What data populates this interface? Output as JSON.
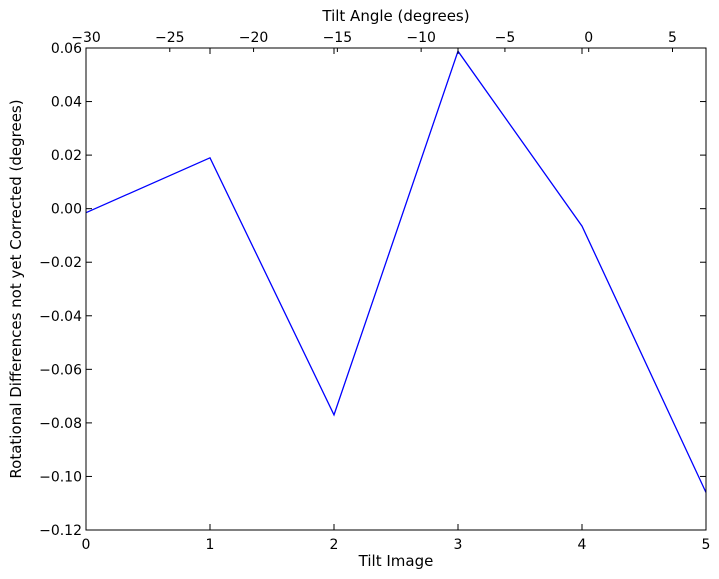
{
  "chart_data": {
    "type": "line",
    "title": "",
    "xlabel": "Tilt Image",
    "ylabel": "Rotational Differences not yet Corrected (degrees)",
    "top_xlabel": "Tilt Angle (degrees)",
    "xlim": [
      0,
      5
    ],
    "ylim": [
      -0.12,
      0.06
    ],
    "top_xlim": [
      -30,
      7
    ],
    "x_ticks": [
      0,
      1,
      2,
      3,
      4,
      5
    ],
    "x_tick_labels": [
      "0",
      "1",
      "2",
      "3",
      "4",
      "5"
    ],
    "y_ticks": [
      0.06,
      0.04,
      0.02,
      0.0,
      -0.02,
      -0.04,
      -0.06,
      -0.08,
      -0.1,
      -0.12
    ],
    "y_tick_labels": [
      "0.06",
      "0.04",
      "0.02",
      "0.00",
      "−0.02",
      "−0.04",
      "−0.06",
      "−0.08",
      "−0.10",
      "−0.12"
    ],
    "top_ticks": [
      -30,
      -25,
      -20,
      -15,
      -10,
      -5,
      0,
      5
    ],
    "top_tick_labels": [
      "−30",
      "−25",
      "−20",
      "−15",
      "−10",
      "−5",
      "0",
      "5"
    ],
    "grid": false,
    "line_color": "#0000ff",
    "series": [
      {
        "x": [
          0,
          1,
          2,
          3,
          4,
          5
        ],
        "y": [
          -0.0015,
          0.019,
          -0.077,
          0.0588,
          -0.0065,
          -0.106
        ]
      }
    ]
  }
}
